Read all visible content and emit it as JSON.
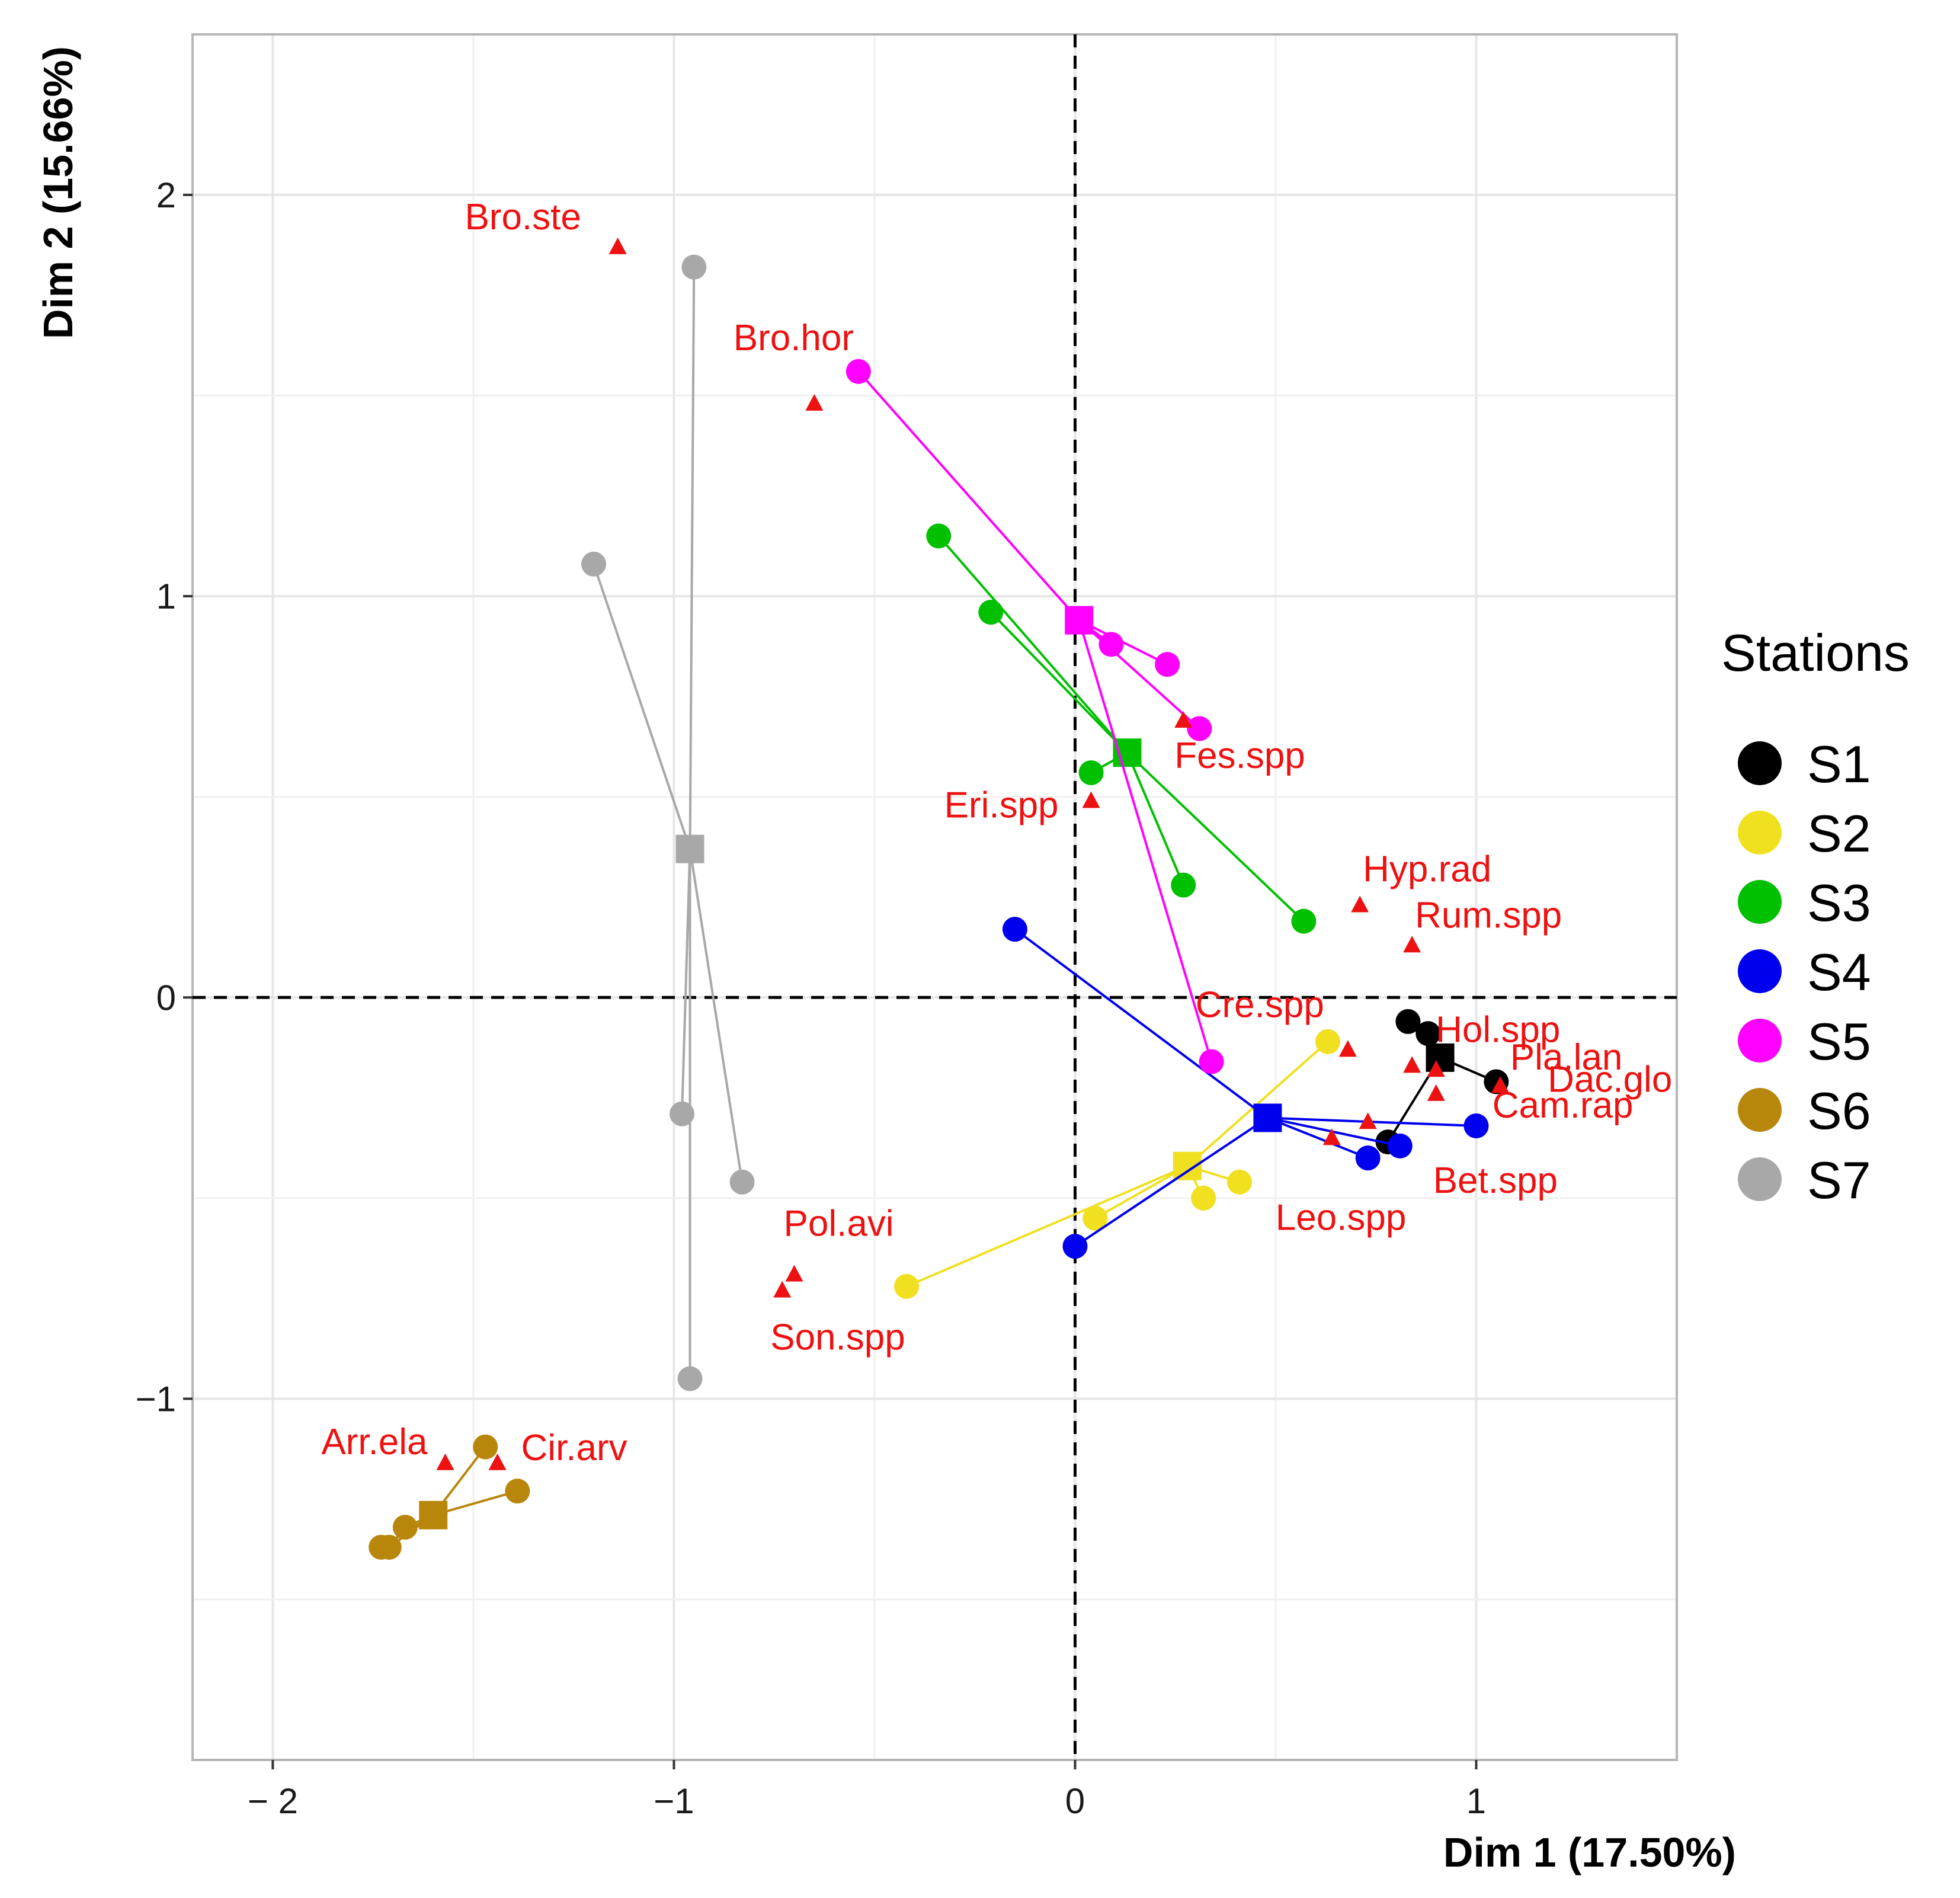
{
  "chart_data": {
    "type": "scatter",
    "xlabel": "Dim 1 (17.50%)",
    "ylabel": "Dim 2 (15.66%)",
    "xlim": [
      -2.2,
      1.5
    ],
    "ylim": [
      -1.9,
      2.4
    ],
    "x_ticks": [
      -2,
      -1,
      0,
      1
    ],
    "y_ticks": [
      -1,
      0,
      1,
      2
    ],
    "x_tick_labels": [
      "− 2",
      "−1",
      "0",
      "1"
    ],
    "y_tick_labels": [
      "−1",
      "0",
      "1",
      "2"
    ],
    "grid": true,
    "reference_lines": {
      "x": 0,
      "y": 0,
      "style": "dashed"
    },
    "legend": {
      "title": "Stations",
      "position": "right",
      "entries": [
        "S1",
        "S2",
        "S3",
        "S4",
        "S5",
        "S6",
        "S7"
      ]
    },
    "series": [
      {
        "name": "S1",
        "color": "#000000",
        "centroid": [
          0.91,
          -0.15
        ],
        "points": [
          [
            0.83,
            -0.06
          ],
          [
            0.88,
            -0.09
          ],
          [
            1.05,
            -0.21
          ],
          [
            0.78,
            -0.36
          ]
        ]
      },
      {
        "name": "S2",
        "color": "#f0e020",
        "centroid": [
          0.28,
          -0.42
        ],
        "points": [
          [
            0.63,
            -0.11
          ],
          [
            0.41,
            -0.46
          ],
          [
            0.32,
            -0.5
          ],
          [
            0.05,
            -0.55
          ],
          [
            -0.42,
            -0.72
          ]
        ]
      },
      {
        "name": "S3",
        "color": "#00c000",
        "centroid": [
          0.13,
          0.61
        ],
        "points": [
          [
            -0.34,
            1.15
          ],
          [
            -0.21,
            0.96
          ],
          [
            0.04,
            0.56
          ],
          [
            0.27,
            0.28
          ],
          [
            0.57,
            0.19
          ]
        ]
      },
      {
        "name": "S4",
        "color": "#0000ee",
        "centroid": [
          0.48,
          -0.3
        ],
        "points": [
          [
            -0.15,
            0.17
          ],
          [
            0.73,
            -0.4
          ],
          [
            0.81,
            -0.37
          ],
          [
            1.0,
            -0.32
          ],
          [
            0.0,
            -0.62
          ]
        ]
      },
      {
        "name": "S5",
        "color": "#ff00ff",
        "centroid": [
          0.01,
          0.94
        ],
        "points": [
          [
            -0.54,
            1.56
          ],
          [
            0.09,
            0.88
          ],
          [
            0.23,
            0.83
          ],
          [
            0.31,
            0.67
          ],
          [
            0.34,
            -0.16
          ]
        ]
      },
      {
        "name": "S6",
        "color": "#b8860b",
        "centroid": [
          -1.6,
          -1.29
        ],
        "points": [
          [
            -1.47,
            -1.12
          ],
          [
            -1.39,
            -1.23
          ],
          [
            -1.67,
            -1.32
          ],
          [
            -1.71,
            -1.37
          ],
          [
            -1.73,
            -1.37
          ]
        ]
      },
      {
        "name": "S7",
        "color": "#a8a8a8",
        "centroid": [
          -0.96,
          0.37
        ],
        "points": [
          [
            -0.95,
            1.82
          ],
          [
            -1.2,
            1.08
          ],
          [
            -0.98,
            -0.29
          ],
          [
            -0.83,
            -0.46
          ],
          [
            -0.96,
            -0.95
          ]
        ]
      }
    ],
    "species": [
      {
        "label": "Bro.ste",
        "x": -1.14,
        "y": 1.87
      },
      {
        "label": "Bro.hor",
        "x": -0.65,
        "y": 1.48
      },
      {
        "label": "Fes.spp",
        "x": 0.27,
        "y": 0.69
      },
      {
        "label": "Eri.spp",
        "x": 0.04,
        "y": 0.49
      },
      {
        "label": "Hyp.rad",
        "x": 0.71,
        "y": 0.23
      },
      {
        "label": "Rum.spp",
        "x": 0.84,
        "y": 0.13
      },
      {
        "label": "Cre.spp",
        "x": 0.68,
        "y": -0.13
      },
      {
        "label": "Hol.spp",
        "x": 0.84,
        "y": -0.17
      },
      {
        "label": "Pla.lan",
        "x": 0.9,
        "y": -0.18
      },
      {
        "label": "Dac.glo",
        "x": 1.06,
        "y": -0.22
      },
      {
        "label": "Cam.rap",
        "x": 0.9,
        "y": -0.24
      },
      {
        "label": "Bet.spp",
        "x": 0.73,
        "y": -0.31
      },
      {
        "label": "Leo.spp",
        "x": 0.64,
        "y": -0.35
      },
      {
        "label": "Pol.avi",
        "x": -0.7,
        "y": -0.69
      },
      {
        "label": "Son.spp",
        "x": -0.73,
        "y": -0.73
      },
      {
        "label": "Arr.ela",
        "x": -1.57,
        "y": -1.16
      },
      {
        "label": "Cir.arv",
        "x": -1.44,
        "y": -1.16
      }
    ]
  }
}
